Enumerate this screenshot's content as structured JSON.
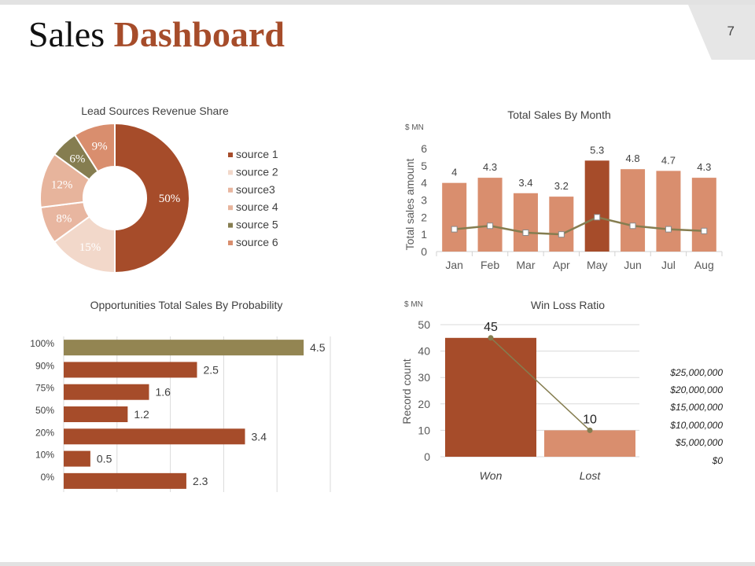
{
  "header": {
    "title_main": "Sales",
    "title_accent": "Dashboard",
    "page_number": "7"
  },
  "colors": {
    "rust": "#a64c2a",
    "salmon": "#d98e6e",
    "pale": "#f1d6c7",
    "blush": "#e8b6a0",
    "olive": "#857d50",
    "olive_bar": "#938552",
    "grid": "#dadada",
    "text": "#404040"
  },
  "chart_data": [
    {
      "id": "lead-sources",
      "type": "pie",
      "title": "Lead Sources  Revenue Share",
      "labels": [
        "source 1",
        "source 2",
        "source3",
        "source 4",
        "source 5",
        "source 6"
      ],
      "values": [
        50,
        15,
        8,
        12,
        6,
        9
      ],
      "value_labels": [
        "50%",
        "15%",
        "8%",
        "12%",
        "6%",
        "9%"
      ],
      "colors": [
        "#a64c2a",
        "#f2d8ca",
        "#e8b6a0",
        "#e7b49c",
        "#857d50",
        "#d98e6e"
      ],
      "legend": "right"
    },
    {
      "id": "sales-by-month",
      "type": "bar",
      "title": "Total Sales By Month",
      "unit_label": "$ MN",
      "ylabel": "Total sales amount",
      "xlabel": "",
      "categories": [
        "Jan",
        "Feb",
        "Mar",
        "Apr",
        "May",
        "Jun",
        "Jul",
        "Aug"
      ],
      "values": [
        4,
        4.3,
        3.4,
        3.2,
        5.3,
        4.8,
        4.7,
        4.3
      ],
      "value_labels": [
        "4",
        "4.3",
        "3.4",
        "3.2",
        "5.3",
        "4.8",
        "4.7",
        "4.3"
      ],
      "highlight": "May",
      "line_values": [
        1.3,
        1.5,
        1.1,
        1.0,
        2.0,
        1.5,
        1.3,
        1.2
      ],
      "ylim": [
        0,
        6
      ],
      "yticks": [
        "0",
        "1",
        "2",
        "3",
        "4",
        "5",
        "6"
      ]
    },
    {
      "id": "opportunities-by-probability",
      "type": "bar",
      "orientation": "horizontal",
      "title": "Opportunities Total Sales By Probability",
      "categories": [
        "100%",
        "90%",
        "75%",
        "50%",
        "20%",
        "10%",
        "0%"
      ],
      "values": [
        4.5,
        2.5,
        1.6,
        1.2,
        3.4,
        0.5,
        2.3
      ],
      "value_labels": [
        "4.5",
        "2.5",
        "1.6",
        "1.2",
        "3.4",
        "0.5",
        "2.3"
      ],
      "xlim": [
        0,
        5
      ],
      "highlight": "100%"
    },
    {
      "id": "win-loss",
      "type": "bar",
      "title": "Win Loss Ratio",
      "unit_label": "$ MN",
      "ylabel": "Record count",
      "categories": [
        "Won",
        "Lost"
      ],
      "values": [
        45,
        10
      ],
      "value_labels": [
        "45",
        "10"
      ],
      "ylim": [
        0,
        50
      ],
      "yticks": [
        "0",
        "10",
        "20",
        "30",
        "40",
        "50"
      ],
      "secondary_axis_labels": [
        "$25,000,000",
        "$20,000,000",
        "$15,000,000",
        "$10,000,000",
        "$5,000,000",
        "$0"
      ]
    }
  ]
}
